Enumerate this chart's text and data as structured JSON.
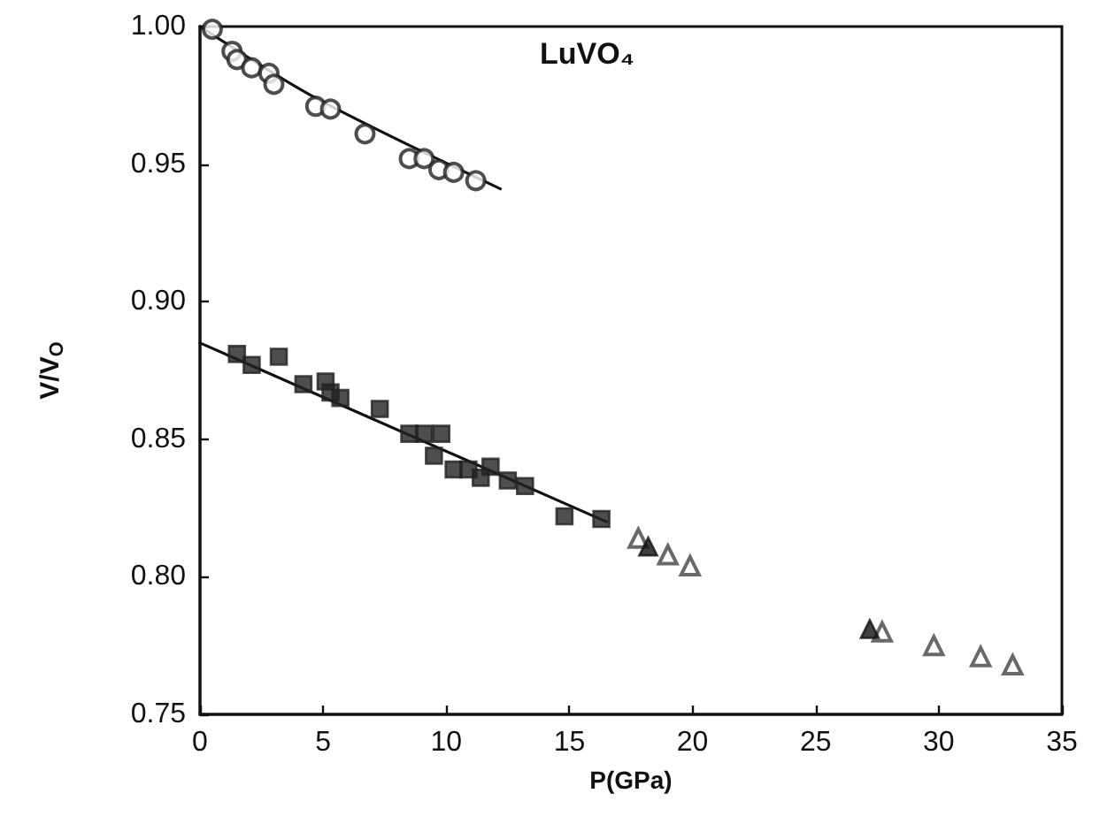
{
  "chart_data": {
    "type": "scatter",
    "xlabel": "P(GPa)",
    "ylabel": "V/V$_{O}$",
    "annotations": [
      "LuVO₄"
    ],
    "xlim": [
      0,
      35
    ],
    "xticks": [
      0,
      5,
      10,
      15,
      20,
      25,
      30,
      35
    ],
    "ylim": [
      0.75,
      1.0
    ],
    "yticks": [
      {
        "value": 0.75,
        "label": "0.75"
      },
      {
        "value": 0.8,
        "label": "0.80"
      },
      {
        "value": 0.85,
        "label": "0.85"
      },
      {
        "value": 0.9,
        "label": "0.90"
      },
      {
        "value": 0.95,
        "label": "0.95"
      },
      {
        "value": 1.0,
        "label": "1.00"
      }
    ],
    "grid": false,
    "series": [
      {
        "color": "#222222",
        "marker": "circle",
        "x": [
          0.5,
          1.3,
          1.5,
          2.1,
          2.8,
          3.0,
          4.7,
          5.3,
          6.7,
          8.5,
          9.1,
          9.7,
          10.3,
          11.2
        ],
        "values": [
          0.999,
          0.991,
          0.988,
          0.985,
          0.983,
          0.979,
          0.971,
          0.97,
          0.961,
          0.952,
          0.952,
          0.948,
          0.947,
          0.944
        ]
      },
      {
        "color": "#222222",
        "marker": "square",
        "x": [
          1.5,
          2.1,
          3.2,
          4.2,
          5.1,
          5.3,
          5.7,
          7.3,
          8.5,
          9.1,
          9.8,
          9.5,
          10.3,
          10.9,
          11.4,
          11.8,
          12.5,
          13.2,
          14.8,
          16.3
        ],
        "values": [
          0.881,
          0.877,
          0.88,
          0.87,
          0.871,
          0.867,
          0.865,
          0.861,
          0.852,
          0.852,
          0.852,
          0.844,
          0.839,
          0.839,
          0.836,
          0.84,
          0.835,
          0.833,
          0.822,
          0.821
        ]
      },
      {
        "color": "#444444",
        "marker": "triangle",
        "x": [
          17.8,
          19.0,
          19.9,
          27.7,
          29.8,
          31.7,
          33.0
        ],
        "values": [
          0.814,
          0.808,
          0.804,
          0.78,
          0.775,
          0.771,
          0.768
        ]
      },
      {
        "color": "#111111",
        "marker": "triangle",
        "x": [
          18.2,
          27.2
        ],
        "values": [
          0.811,
          0.781
        ]
      },
      {
        "type": "line",
        "color": "#111111",
        "marker": "none",
        "line_style": "solid",
        "x": [
          0,
          4.7,
          12.2
        ],
        "values": [
          1.0,
          0.974,
          0.941
        ]
      },
      {
        "type": "line",
        "color": "#111111",
        "marker": "none",
        "line_style": "solid",
        "x": [
          0,
          16.5
        ],
        "values": [
          0.885,
          0.82
        ]
      }
    ]
  }
}
